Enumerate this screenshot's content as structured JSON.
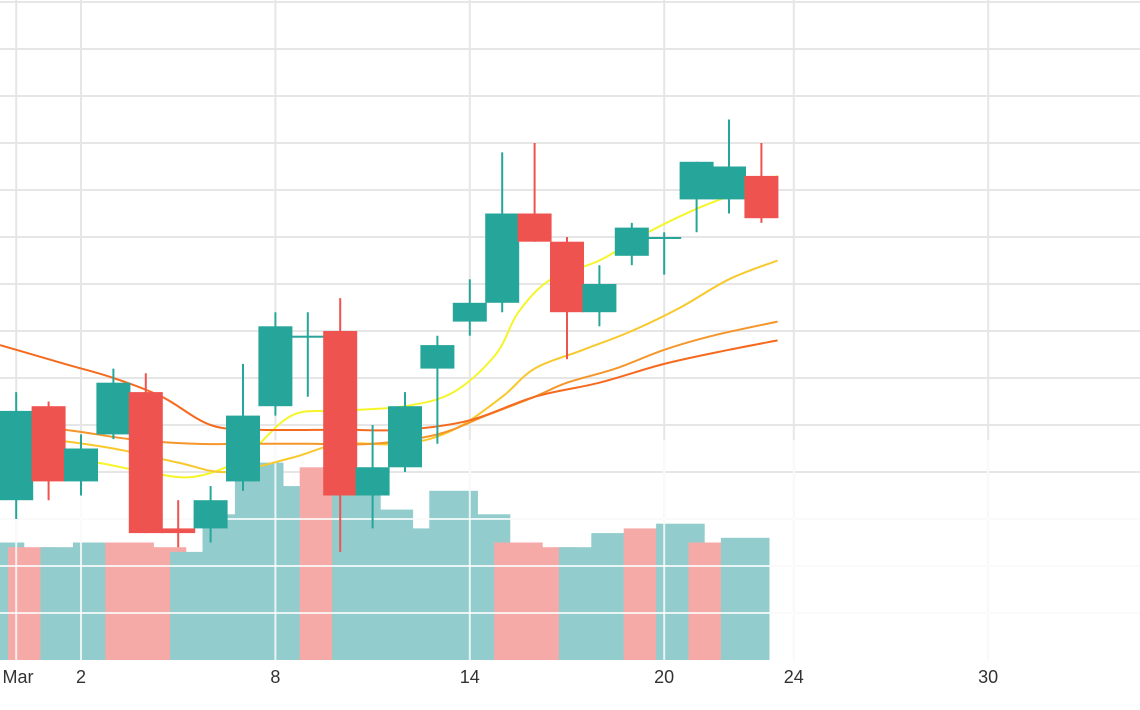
{
  "chart_data": {
    "type": "candlestick",
    "x_axis": {
      "ticks": [
        {
          "day": 0,
          "label": "Mar"
        },
        {
          "day": 2,
          "label": "2"
        },
        {
          "day": 8,
          "label": "8"
        },
        {
          "day": 14,
          "label": "14"
        },
        {
          "day": 20,
          "label": "20"
        },
        {
          "day": 24,
          "label": "24"
        },
        {
          "day": 30,
          "label": "30"
        }
      ],
      "range": [
        -0.5,
        34.5
      ]
    },
    "price_axis": {
      "range": [
        0,
        14
      ],
      "gridlines": [
        1,
        2,
        3,
        4,
        5,
        6,
        7,
        8,
        9,
        10,
        11,
        12,
        13,
        14
      ]
    },
    "volume_axis": {
      "range": [
        0,
        4
      ],
      "gridlines": [
        1,
        2,
        3
      ]
    },
    "grid": true,
    "up_color": "#26a69a",
    "down_color": "#ef5350",
    "volume_up_color": "#92cccc",
    "volume_down_color": "#f5aaa8",
    "candles": [
      {
        "day": 0,
        "open": 3.4,
        "high": 5.7,
        "low": 3.0,
        "close": 5.3
      },
      {
        "day": 1,
        "open": 5.4,
        "high": 5.5,
        "low": 3.4,
        "close": 3.8
      },
      {
        "day": 2,
        "open": 3.8,
        "high": 4.8,
        "low": 3.5,
        "close": 4.5
      },
      {
        "day": 3,
        "open": 4.8,
        "high": 6.2,
        "low": 4.7,
        "close": 5.9
      },
      {
        "day": 4,
        "open": 5.7,
        "high": 6.1,
        "low": 2.7,
        "close": 2.7
      },
      {
        "day": 5,
        "open": 2.8,
        "high": 3.4,
        "low": 2.4,
        "close": 2.7
      },
      {
        "day": 6,
        "open": 2.8,
        "high": 3.7,
        "low": 2.5,
        "close": 3.4
      },
      {
        "day": 7,
        "open": 3.8,
        "high": 6.3,
        "low": 3.6,
        "close": 5.2
      },
      {
        "day": 8,
        "open": 5.4,
        "high": 7.4,
        "low": 5.2,
        "close": 7.1
      },
      {
        "day": 9,
        "open": 6.9,
        "high": 7.4,
        "low": 5.6,
        "close": 6.9
      },
      {
        "day": 10,
        "open": 7.0,
        "high": 7.7,
        "low": 2.3,
        "close": 3.5
      },
      {
        "day": 11,
        "open": 3.5,
        "high": 5.0,
        "low": 2.8,
        "close": 4.1
      },
      {
        "day": 12,
        "open": 4.1,
        "high": 5.7,
        "low": 4.0,
        "close": 5.4
      },
      {
        "day": 13,
        "open": 6.2,
        "high": 6.9,
        "low": 4.6,
        "close": 6.7
      },
      {
        "day": 14,
        "open": 7.2,
        "high": 8.1,
        "low": 6.9,
        "close": 7.6
      },
      {
        "day": 15,
        "open": 7.6,
        "high": 10.8,
        "low": 7.4,
        "close": 9.5
      },
      {
        "day": 16,
        "open": 9.5,
        "high": 11.0,
        "low": 8.9,
        "close": 8.9
      },
      {
        "day": 17,
        "open": 8.9,
        "high": 9.0,
        "low": 6.4,
        "close": 7.4
      },
      {
        "day": 18,
        "open": 7.4,
        "high": 8.4,
        "low": 7.1,
        "close": 8.0
      },
      {
        "day": 19,
        "open": 8.6,
        "high": 9.3,
        "low": 8.4,
        "close": 9.2
      },
      {
        "day": 20,
        "open": 9.0,
        "high": 9.1,
        "low": 8.2,
        "close": 9.0
      },
      {
        "day": 21,
        "open": 9.8,
        "high": 10.6,
        "low": 9.1,
        "close": 10.6
      },
      {
        "day": 22,
        "open": 9.8,
        "high": 11.5,
        "low": 9.5,
        "close": 10.5
      },
      {
        "day": 23,
        "open": 10.3,
        "high": 11.0,
        "low": 9.3,
        "close": 9.4
      }
    ],
    "volumes": [
      {
        "day": -0.5,
        "value": 2.5,
        "direction": "up"
      },
      {
        "day": 0.5,
        "value": 2.4,
        "direction": "down"
      },
      {
        "day": 1.5,
        "value": 2.4,
        "direction": "up"
      },
      {
        "day": 2.5,
        "value": 2.5,
        "direction": "up"
      },
      {
        "day": 3.5,
        "value": 2.5,
        "direction": "down"
      },
      {
        "day": 4.5,
        "value": 2.4,
        "direction": "down"
      },
      {
        "day": 5.5,
        "value": 2.3,
        "direction": "up"
      },
      {
        "day": 6.5,
        "value": 3.1,
        "direction": "up"
      },
      {
        "day": 7.5,
        "value": 4.2,
        "direction": "up"
      },
      {
        "day": 8.5,
        "value": 3.7,
        "direction": "up"
      },
      {
        "day": 9.5,
        "value": 4.1,
        "direction": "down"
      },
      {
        "day": 10.5,
        "value": 4.1,
        "direction": "up"
      },
      {
        "day": 11.5,
        "value": 3.2,
        "direction": "up"
      },
      {
        "day": 12.5,
        "value": 2.8,
        "direction": "up"
      },
      {
        "day": 13.5,
        "value": 3.6,
        "direction": "up"
      },
      {
        "day": 14.5,
        "value": 3.1,
        "direction": "up"
      },
      {
        "day": 15.5,
        "value": 2.5,
        "direction": "down"
      },
      {
        "day": 16.5,
        "value": 2.4,
        "direction": "down"
      },
      {
        "day": 17.5,
        "value": 2.4,
        "direction": "up"
      },
      {
        "day": 18.5,
        "value": 2.7,
        "direction": "up"
      },
      {
        "day": 19.5,
        "value": 2.8,
        "direction": "down"
      },
      {
        "day": 20.5,
        "value": 2.9,
        "direction": "up"
      },
      {
        "day": 21.5,
        "value": 2.5,
        "direction": "down"
      },
      {
        "day": 22.5,
        "value": 2.6,
        "direction": "up"
      }
    ],
    "moving_averages": [
      {
        "color": "#f5f52a",
        "points": [
          [
            -0.5,
            4.5
          ],
          [
            1,
            4.3
          ],
          [
            2.5,
            4.2
          ],
          [
            4,
            4.0
          ],
          [
            5.5,
            3.9
          ],
          [
            7,
            4.3
          ],
          [
            8.5,
            5.2
          ],
          [
            10,
            5.3
          ],
          [
            12,
            5.4
          ],
          [
            13.5,
            5.7
          ],
          [
            14.8,
            6.5
          ],
          [
            15.5,
            7.4
          ],
          [
            16.5,
            8.1
          ],
          [
            18,
            8.5
          ],
          [
            19.5,
            9.1
          ],
          [
            21,
            9.6
          ],
          [
            22.5,
            10.0
          ],
          [
            23.5,
            10.3
          ]
        ]
      },
      {
        "color": "#f8c82c",
        "points": [
          [
            -0.5,
            4.8
          ],
          [
            1,
            4.7
          ],
          [
            3,
            4.5
          ],
          [
            5,
            4.2
          ],
          [
            6.5,
            4.0
          ],
          [
            8.5,
            4.3
          ],
          [
            10,
            4.6
          ],
          [
            12,
            4.6
          ],
          [
            13.5,
            4.9
          ],
          [
            15,
            5.6
          ],
          [
            16,
            6.2
          ],
          [
            17.5,
            6.6
          ],
          [
            19,
            7.0
          ],
          [
            20.5,
            7.5
          ],
          [
            22,
            8.1
          ],
          [
            23.5,
            8.5
          ]
        ]
      },
      {
        "color": "#f5962a",
        "points": [
          [
            -0.5,
            5.0
          ],
          [
            1.5,
            4.9
          ],
          [
            3.5,
            4.7
          ],
          [
            5.5,
            4.6
          ],
          [
            7,
            4.6
          ],
          [
            9,
            4.6
          ],
          [
            11,
            4.6
          ],
          [
            13,
            4.8
          ],
          [
            14.5,
            5.2
          ],
          [
            16,
            5.6
          ],
          [
            17,
            5.9
          ],
          [
            18.5,
            6.2
          ],
          [
            20,
            6.6
          ],
          [
            21.5,
            6.9
          ],
          [
            23.5,
            7.2
          ]
        ]
      },
      {
        "color": "#f56a1e",
        "points": [
          [
            -0.5,
            6.7
          ],
          [
            1.5,
            6.3
          ],
          [
            3,
            6.0
          ],
          [
            4.5,
            5.6
          ],
          [
            6,
            5.0
          ],
          [
            7.5,
            4.9
          ],
          [
            10,
            4.9
          ],
          [
            12,
            4.9
          ],
          [
            14,
            5.1
          ],
          [
            16,
            5.6
          ],
          [
            18,
            5.9
          ],
          [
            20,
            6.3
          ],
          [
            22,
            6.6
          ],
          [
            23.5,
            6.8
          ]
        ]
      }
    ]
  }
}
